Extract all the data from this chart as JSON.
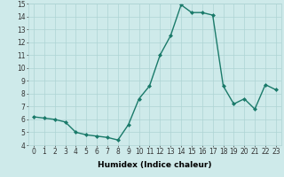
{
  "x": [
    0,
    1,
    2,
    3,
    4,
    5,
    6,
    7,
    8,
    9,
    10,
    11,
    12,
    13,
    14,
    15,
    16,
    17,
    18,
    19,
    20,
    21,
    22,
    23
  ],
  "y": [
    6.2,
    6.1,
    6.0,
    5.8,
    5.0,
    4.8,
    4.7,
    4.6,
    4.4,
    5.6,
    7.6,
    8.6,
    11.0,
    12.5,
    14.9,
    14.3,
    14.3,
    14.1,
    8.6,
    7.2,
    7.6,
    6.8,
    8.7,
    8.3
  ],
  "line_color": "#1a7a6a",
  "marker": "D",
  "marker_size": 2.0,
  "bg_color": "#ceeaea",
  "grid_color": "#aed4d4",
  "xlabel": "Humidex (Indice chaleur)",
  "xlim": [
    -0.5,
    23.5
  ],
  "ylim": [
    4,
    15
  ],
  "yticks": [
    4,
    5,
    6,
    7,
    8,
    9,
    10,
    11,
    12,
    13,
    14,
    15
  ],
  "xticks": [
    0,
    1,
    2,
    3,
    4,
    5,
    6,
    7,
    8,
    9,
    10,
    11,
    12,
    13,
    14,
    15,
    16,
    17,
    18,
    19,
    20,
    21,
    22,
    23
  ],
  "xtick_labels": [
    "0",
    "1",
    "2",
    "3",
    "4",
    "5",
    "6",
    "7",
    "8",
    "9",
    "10",
    "11",
    "12",
    "13",
    "14",
    "15",
    "16",
    "17",
    "18",
    "19",
    "20",
    "21",
    "22",
    "23"
  ],
  "xlabel_fontsize": 6.5,
  "tick_fontsize": 5.5,
  "line_width": 1.0
}
